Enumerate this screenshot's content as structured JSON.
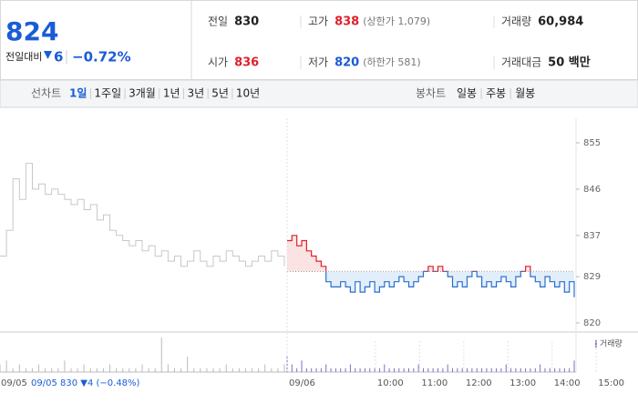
{
  "header": {
    "price": "824",
    "change_label": "전일대비",
    "change": "6",
    "change_pct": "−0.72%"
  },
  "stats": [
    {
      "label": "전일",
      "value": "830"
    },
    {
      "label": "고가",
      "value": "838",
      "note": "(상한가 1,079)"
    },
    {
      "label": "거래량",
      "value": "60,984"
    },
    {
      "label": "시가",
      "value": "836"
    },
    {
      "label": "저가",
      "value": "820",
      "note": "(하한가 581)"
    },
    {
      "label": "거래대금",
      "value": "50 백만"
    }
  ],
  "tabs": {
    "line_label": "선차트",
    "line_periods": [
      "1일",
      "1주일",
      "3개월",
      "1년",
      "3년",
      "5년",
      "10년"
    ],
    "candle_label": "봉차트",
    "candle_periods": [
      "일봉",
      "주봉",
      "월봉"
    ]
  },
  "chart": {
    "yticks": [
      855,
      846,
      837,
      829,
      820
    ],
    "ylim": [
      820,
      855
    ],
    "reference": 830,
    "x_labels": [
      "09/05",
      "09/06",
      "10:00",
      "11:00",
      "12:00",
      "13:00",
      "14:00",
      "15:00"
    ],
    "legend": "거래량",
    "footer": "09/05  830 ▼4 (−0.48%)",
    "prev_day": [
      833,
      838,
      848,
      844,
      851,
      846,
      847,
      845,
      846,
      845,
      844,
      843,
      844,
      842,
      843,
      840,
      841,
      838,
      837,
      836,
      835,
      836,
      834,
      835,
      833,
      834,
      832,
      833,
      831,
      832,
      834,
      832,
      831,
      833,
      832,
      834,
      833,
      832,
      831,
      832,
      833,
      832,
      834,
      833,
      831
    ],
    "today": [
      836,
      837,
      835,
      836,
      834,
      833,
      832,
      831,
      828,
      827,
      827,
      828,
      827,
      826,
      828,
      826,
      827,
      828,
      826,
      827,
      828,
      827,
      828,
      829,
      828,
      827,
      828,
      829,
      830,
      831,
      830,
      831,
      830,
      829,
      827,
      828,
      827,
      829,
      830,
      829,
      827,
      828,
      827,
      828,
      829,
      828,
      827,
      829,
      830,
      831,
      829,
      828,
      827,
      829,
      828,
      827,
      828,
      826,
      828,
      825
    ],
    "prev_volume": [
      2,
      3,
      1,
      2,
      1,
      1,
      2,
      1,
      1,
      1,
      3,
      1,
      1,
      2,
      1,
      1,
      1,
      2,
      1,
      1,
      1,
      1,
      2,
      1,
      1,
      9,
      2,
      1,
      1,
      4,
      1,
      1,
      1,
      1,
      1,
      2,
      1,
      1,
      1,
      1,
      1,
      2,
      1,
      1,
      2
    ],
    "today_volume": [
      4,
      2,
      1,
      3,
      1,
      1,
      1,
      1,
      2,
      1,
      1,
      1,
      1,
      2,
      1,
      1,
      1,
      1,
      1,
      1,
      2,
      1,
      1,
      1,
      1,
      1,
      1,
      2,
      1,
      1,
      1,
      1,
      1,
      2,
      1,
      1,
      1,
      1,
      1,
      1,
      1,
      1,
      1,
      1,
      1,
      2,
      1,
      1,
      1,
      1,
      1,
      1,
      2,
      1,
      1,
      1,
      1,
      1,
      1,
      3
    ]
  }
}
